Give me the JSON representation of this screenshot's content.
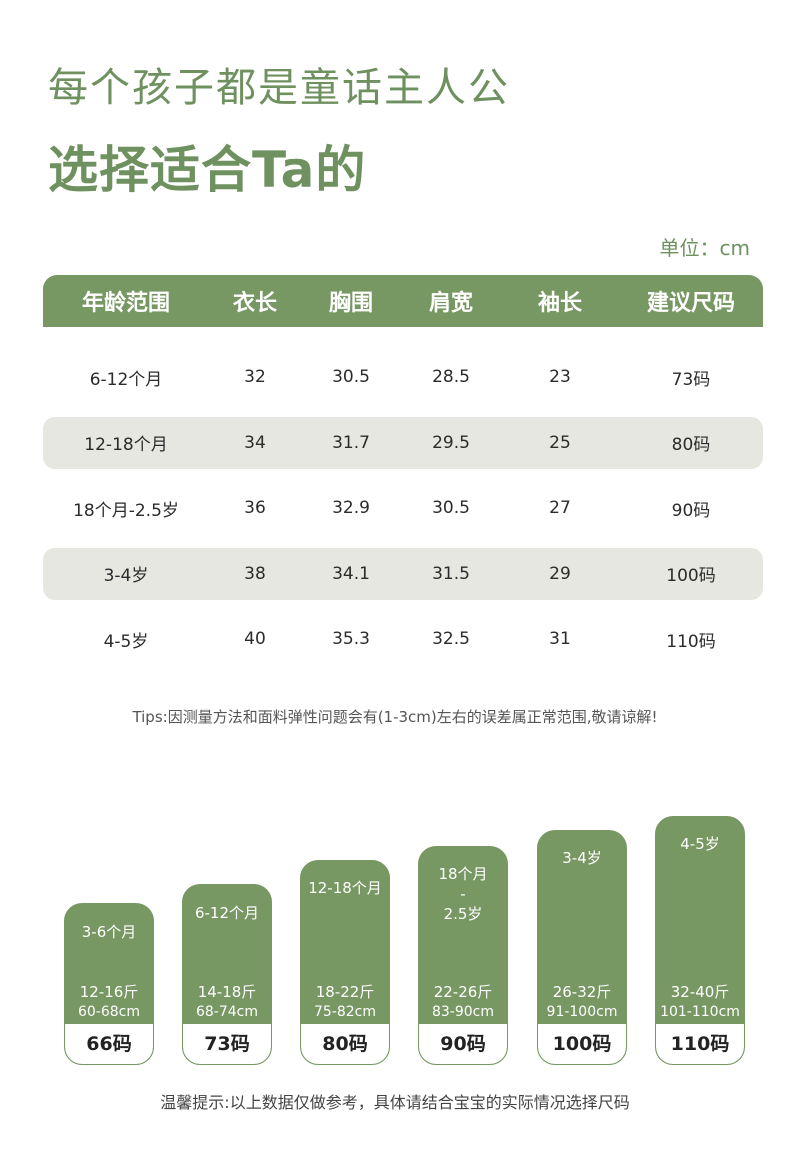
{
  "header": {
    "line1": "每个孩子都是童话主人公",
    "line2": "选择适合Ta的"
  },
  "unit": "单位：cm",
  "table": {
    "headers": [
      "年龄范围",
      "衣长",
      "胸围",
      "肩宽",
      "袖长",
      "建议尺码"
    ],
    "rows": [
      [
        "6-12个月",
        "32",
        "30.5",
        "28.5",
        "23",
        "73码"
      ],
      [
        "12-18个月",
        "34",
        "31.7",
        "29.5",
        "25",
        "80码"
      ],
      [
        "18个月-2.5岁",
        "36",
        "32.9",
        "30.5",
        "27",
        "90码"
      ],
      [
        "3-4岁",
        "38",
        "34.1",
        "31.5",
        "29",
        "100码"
      ],
      [
        "4-5岁",
        "40",
        "35.3",
        "32.5",
        "31",
        "110码"
      ]
    ]
  },
  "tips": "Tips:因测量方法和面料弹性问题会有(1-3cm)左右的误差属正常范围,敬请谅解!",
  "cards": [
    {
      "age": "3-6个月",
      "weight": "12-16斤",
      "height": "60-68cm",
      "size": "66码"
    },
    {
      "age": "6-12个月",
      "weight": "14-18斤",
      "height": "68-74cm",
      "size": "73码"
    },
    {
      "age": "12-18个月",
      "weight": "18-22斤",
      "height": "75-82cm",
      "size": "80码"
    },
    {
      "age_line1": "18个月",
      "age_line2": "-",
      "age_line3": "2.5岁",
      "weight": "22-26斤",
      "height": "83-90cm",
      "size": "90码"
    },
    {
      "age": "3-4岁",
      "weight": "26-32斤",
      "height": "91-100cm",
      "size": "100码"
    },
    {
      "age": "4-5岁",
      "weight": "32-40斤",
      "height": "101-110cm",
      "size": "110码"
    }
  ],
  "footer": "温馨提示:以上数据仅做参考，具体请结合宝宝的实际情况选择尺码",
  "colors": {
    "accent": "#789863",
    "title": "#6e915f",
    "row_shade": "#e6e7e1"
  }
}
